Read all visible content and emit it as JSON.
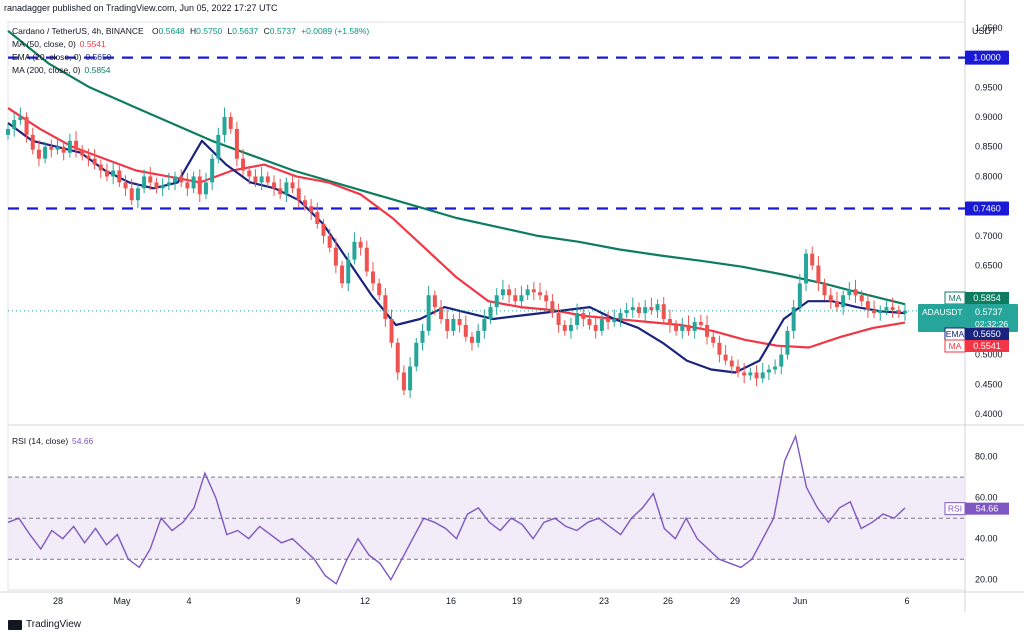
{
  "header": {
    "published": "ranadagger published on TradingView.com, Jun 05, 2022 17:27 UTC",
    "symbol": "Cardano / TetherUS, 4h, BINANCE",
    "ohlc": {
      "o_label": "O",
      "o": "0.5648",
      "h_label": "H",
      "h": "0.5750",
      "l_label": "L",
      "l": "0.5637",
      "c_label": "C",
      "c": "0.5737",
      "change": "+0.0089 (+1.58%)"
    },
    "indicators": [
      {
        "label": "MA (50, close, 0)",
        "value": "0.5541",
        "color": "#f23645"
      },
      {
        "label": "EMA (20, close, 0)",
        "value": "0.5650",
        "color": "#1a237e"
      },
      {
        "label": "MA (200, close, 0)",
        "value": "0.5854",
        "color": "#0e7d5f"
      }
    ]
  },
  "footer": {
    "brand": "TradingView"
  },
  "chart_data": [
    {
      "type": "candlestick",
      "currency": "USDT",
      "ylim": [
        0.39,
        1.06
      ],
      "y_ticks": [
        "0.4000",
        "0.4500",
        "0.5000",
        "0.5500",
        "0.6000",
        "0.6500",
        "0.7000",
        "0.7500",
        "0.8000",
        "0.8500",
        "0.9000",
        "0.9500",
        "1.0000",
        "1.0500"
      ],
      "x_ticks": [
        "28",
        "May",
        "4",
        "9",
        "12",
        "16",
        "19",
        "23",
        "26",
        "29",
        "Jun",
        "6"
      ],
      "horizontal_lines": [
        {
          "value": 1.0,
          "label": "1.0000"
        },
        {
          "value": 0.746,
          "label": "0.7460"
        }
      ],
      "price_tags": [
        {
          "label": "MA",
          "value": "0.5854",
          "color": "#0e7d5f"
        },
        {
          "label": "ADAUSDT",
          "value": "0.5737",
          "sub": "02:32:26",
          "color": "#26a69a"
        },
        {
          "label": "EMA",
          "value": "0.5650",
          "color": "#1a237e"
        },
        {
          "label": "MA",
          "value": "0.5541",
          "color": "#f23645"
        }
      ],
      "close_series": [
        0.88,
        0.895,
        0.9,
        0.87,
        0.845,
        0.83,
        0.85,
        0.845,
        0.85,
        0.84,
        0.86,
        0.845,
        0.835,
        0.83,
        0.82,
        0.81,
        0.8,
        0.81,
        0.79,
        0.78,
        0.76,
        0.78,
        0.8,
        0.79,
        0.78,
        0.785,
        0.79,
        0.8,
        0.79,
        0.78,
        0.8,
        0.77,
        0.79,
        0.83,
        0.87,
        0.9,
        0.88,
        0.83,
        0.81,
        0.8,
        0.79,
        0.8,
        0.79,
        0.78,
        0.77,
        0.79,
        0.78,
        0.76,
        0.75,
        0.74,
        0.72,
        0.7,
        0.68,
        0.65,
        0.62,
        0.66,
        0.69,
        0.68,
        0.64,
        0.62,
        0.6,
        0.56,
        0.52,
        0.47,
        0.44,
        0.48,
        0.52,
        0.54,
        0.6,
        0.58,
        0.56,
        0.54,
        0.56,
        0.55,
        0.53,
        0.52,
        0.54,
        0.56,
        0.58,
        0.6,
        0.61,
        0.6,
        0.59,
        0.6,
        0.61,
        0.605,
        0.6,
        0.59,
        0.57,
        0.55,
        0.54,
        0.55,
        0.57,
        0.56,
        0.55,
        0.54,
        0.56,
        0.555,
        0.56,
        0.57,
        0.575,
        0.58,
        0.57,
        0.58,
        0.575,
        0.585,
        0.56,
        0.55,
        0.54,
        0.55,
        0.54,
        0.555,
        0.55,
        0.53,
        0.52,
        0.5,
        0.49,
        0.48,
        0.47,
        0.465,
        0.47,
        0.46,
        0.47,
        0.475,
        0.48,
        0.5,
        0.54,
        0.58,
        0.62,
        0.67,
        0.65,
        0.62,
        0.6,
        0.59,
        0.58,
        0.6,
        0.61,
        0.6,
        0.59,
        0.575,
        0.57,
        0.575,
        0.58,
        0.575,
        0.57,
        0.574
      ],
      "ma200_series": [
        1.045,
        0.99,
        0.95,
        0.92,
        0.89,
        0.86,
        0.835,
        0.81,
        0.79,
        0.77,
        0.75,
        0.73,
        0.715,
        0.7,
        0.69,
        0.677,
        0.667,
        0.658,
        0.648,
        0.635,
        0.62,
        0.602,
        0.585
      ],
      "ema20_series": [
        0.89,
        0.86,
        0.85,
        0.84,
        0.81,
        0.79,
        0.78,
        0.79,
        0.86,
        0.82,
        0.79,
        0.78,
        0.76,
        0.72,
        0.66,
        0.6,
        0.55,
        0.56,
        0.58,
        0.57,
        0.56,
        0.565,
        0.57,
        0.575,
        0.58,
        0.56,
        0.545,
        0.52,
        0.49,
        0.475,
        0.47,
        0.49,
        0.56,
        0.59,
        0.59,
        0.58,
        0.573,
        0.57
      ],
      "ma50_series": [
        0.915,
        0.88,
        0.85,
        0.83,
        0.81,
        0.8,
        0.79,
        0.81,
        0.82,
        0.8,
        0.79,
        0.77,
        0.73,
        0.68,
        0.63,
        0.59,
        0.58,
        0.575,
        0.565,
        0.56,
        0.555,
        0.55,
        0.54,
        0.525,
        0.515,
        0.512,
        0.53,
        0.545,
        0.554
      ],
      "rsi": {
        "label": "RSI (14, close)",
        "value": "54.66",
        "ylim": [
          15,
          93
        ],
        "y_ticks": [
          "20.00",
          "40.00",
          "60.00",
          "80.00"
        ],
        "band": [
          30,
          70
        ],
        "series": [
          48,
          50,
          42,
          35,
          44,
          40,
          46,
          38,
          45,
          37,
          42,
          30,
          26,
          35,
          50,
          44,
          48,
          55,
          72,
          60,
          42,
          44,
          40,
          46,
          42,
          38,
          40,
          35,
          30,
          22,
          18,
          30,
          40,
          32,
          28,
          20,
          30,
          40,
          50,
          48,
          45,
          40,
          52,
          55,
          48,
          44,
          50,
          47,
          40,
          48,
          50,
          46,
          44,
          48,
          50,
          46,
          42,
          50,
          55,
          62,
          45,
          40,
          50,
          40,
          35,
          30,
          28,
          26,
          30,
          40,
          50,
          78,
          90,
          65,
          55,
          48,
          55,
          58,
          45,
          48,
          52,
          50,
          55
        ]
      }
    }
  ]
}
